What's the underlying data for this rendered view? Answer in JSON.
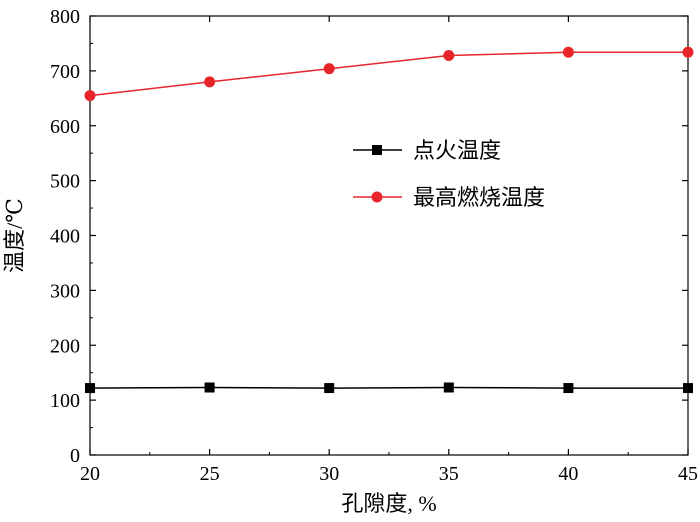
{
  "chart_data": {
    "type": "line",
    "title": "",
    "xlabel": "孔隙度, %",
    "ylabel": "温度/℃",
    "x": [
      20,
      25,
      30,
      35,
      40,
      45
    ],
    "xlim": [
      20,
      45
    ],
    "ylim": [
      0,
      800
    ],
    "xticks": [
      "20",
      "25",
      "30",
      "35",
      "40",
      "45"
    ],
    "yticks": [
      "0",
      "100",
      "200",
      "300",
      "400",
      "500",
      "600",
      "700",
      "800"
    ],
    "grid": false,
    "legend_position": "center-right",
    "series": [
      {
        "name": "点火温度",
        "values": [
          122,
          123,
          122,
          123,
          122,
          122
        ],
        "color": "#000000",
        "marker": "square"
      },
      {
        "name": "最高燃烧温度",
        "values": [
          655,
          680,
          704,
          728,
          734,
          734
        ],
        "color": "#e8252a",
        "marker": "circle"
      }
    ]
  }
}
